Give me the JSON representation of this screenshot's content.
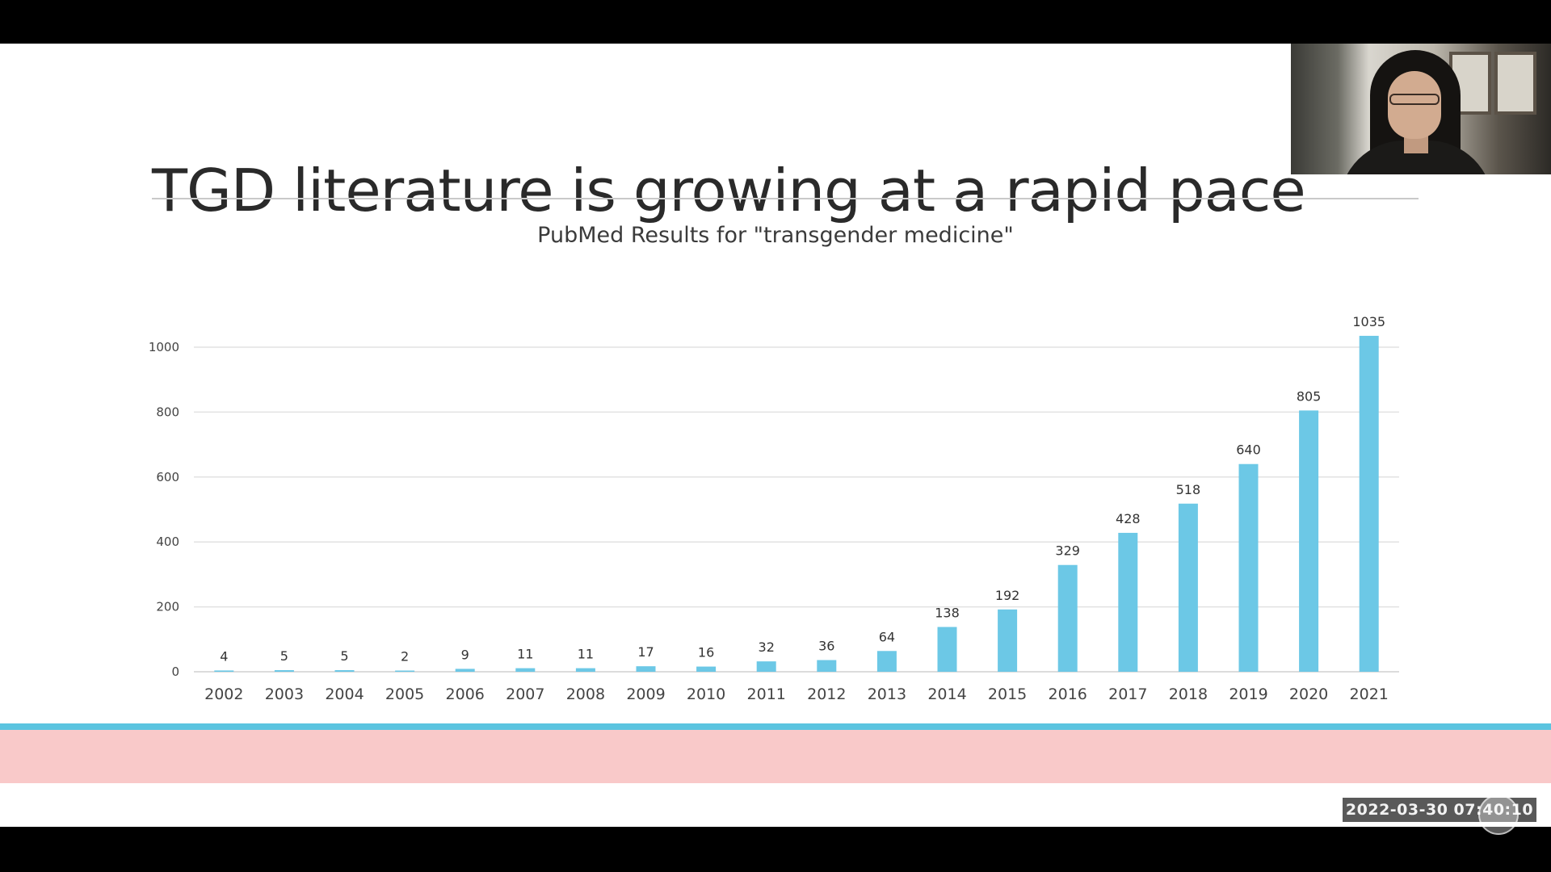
{
  "slide": {
    "title": "TGD literature is growing at a rapid pace"
  },
  "timestamp": "2022-03-30 07:40:10",
  "colors": {
    "bar": "#6cc8e6",
    "gridline": "#e2e2e2",
    "footer_line": "#5bc4e0",
    "footer_band": "#f9c9c9"
  },
  "chart_data": {
    "type": "bar",
    "title": "PubMed Results for \"transgender medicine\"",
    "xlabel": "",
    "ylabel": "",
    "ylim": [
      0,
      1000
    ],
    "yticks": [
      0,
      200,
      400,
      600,
      800,
      1000
    ],
    "grid": true,
    "categories": [
      "2002",
      "2003",
      "2004",
      "2005",
      "2006",
      "2007",
      "2008",
      "2009",
      "2010",
      "2011",
      "2012",
      "2013",
      "2014",
      "2015",
      "2016",
      "2017",
      "2018",
      "2019",
      "2020",
      "2021"
    ],
    "values": [
      4,
      5,
      5,
      2,
      9,
      11,
      11,
      17,
      16,
      32,
      36,
      64,
      138,
      192,
      329,
      428,
      518,
      640,
      805,
      1035
    ]
  }
}
